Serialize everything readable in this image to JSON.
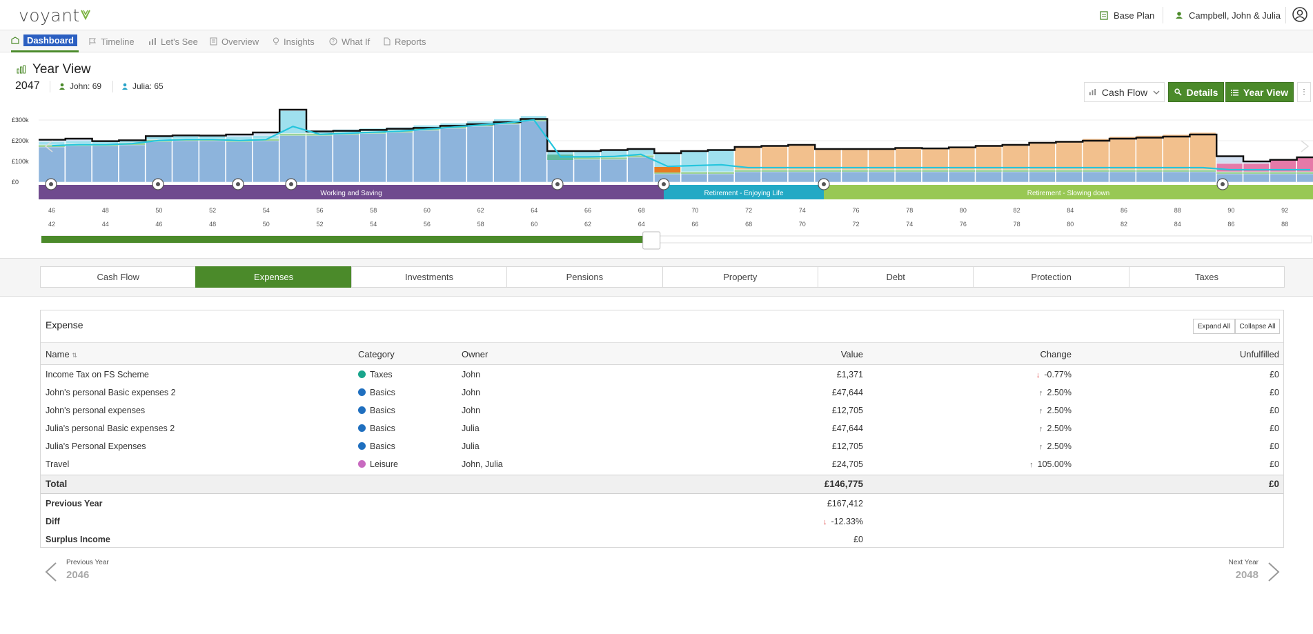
{
  "app": {
    "logo_text": "voyant"
  },
  "header": {
    "plan_label": "Base Plan",
    "client_label": "Campbell, John & Julia"
  },
  "nav": {
    "items": [
      {
        "label": "Dashboard",
        "icon": "dashboard-icon"
      },
      {
        "label": "Timeline",
        "icon": "flag-icon"
      },
      {
        "label": "Let's See",
        "icon": "bar-chart-icon"
      },
      {
        "label": "Overview",
        "icon": "document-icon"
      },
      {
        "label": "Insights",
        "icon": "lightbulb-icon"
      },
      {
        "label": "What If",
        "icon": "question-icon"
      },
      {
        "label": "Reports",
        "icon": "report-icon"
      }
    ]
  },
  "view": {
    "title": "Year View",
    "year": "2047",
    "ages": [
      {
        "label": "John: 69",
        "color": "#4b8a2a"
      },
      {
        "label": "Julia: 65",
        "color": "#29a3c8"
      }
    ],
    "buttons": {
      "cashflow": "Cash Flow",
      "details": "Details",
      "yearview": "Year View"
    }
  },
  "chart_data": {
    "type": "bar",
    "y_ticks": [
      "£300k",
      "£200k",
      "£100k",
      "£0"
    ],
    "ylim": [
      0,
      350
    ],
    "stacked_series_colors": [
      "#8db4dc",
      "#a8c4e6",
      "#9fe0ee",
      "#f2c08d",
      "#9cd29a",
      "#e57aa8",
      "#e77b22",
      "#5fb99c"
    ],
    "bars": [
      {
        "age": 46,
        "blue": 170,
        "cyan": 15,
        "total": 205
      },
      {
        "age": 47,
        "blue": 175,
        "cyan": 15,
        "total": 210
      },
      {
        "age": 48,
        "blue": 175,
        "cyan": 15,
        "total": 198
      },
      {
        "age": 49,
        "blue": 180,
        "cyan": 15,
        "total": 202
      },
      {
        "age": 50,
        "blue": 195,
        "cyan": 15,
        "total": 222
      },
      {
        "age": 51,
        "blue": 200,
        "cyan": 15,
        "total": 226
      },
      {
        "age": 52,
        "blue": 200,
        "cyan": 15,
        "total": 225
      },
      {
        "age": 53,
        "blue": 195,
        "cyan": 15,
        "total": 230
      },
      {
        "age": 54,
        "blue": 200,
        "cyan": 15,
        "total": 240
      },
      {
        "age": 55,
        "blue": 225,
        "cyan": 110,
        "total": 350
      },
      {
        "age": 56,
        "blue": 225,
        "cyan": 15,
        "total": 245
      },
      {
        "age": 57,
        "blue": 230,
        "cyan": 15,
        "total": 248
      },
      {
        "age": 58,
        "blue": 235,
        "cyan": 15,
        "total": 252
      },
      {
        "age": 59,
        "blue": 240,
        "cyan": 15,
        "total": 258
      },
      {
        "age": 60,
        "blue": 250,
        "cyan": 15,
        "total": 262
      },
      {
        "age": 61,
        "blue": 260,
        "cyan": 15,
        "total": 272
      },
      {
        "age": 62,
        "blue": 270,
        "cyan": 15,
        "total": 280
      },
      {
        "age": 63,
        "blue": 280,
        "cyan": 15,
        "total": 290
      },
      {
        "age": 64,
        "blue": 295,
        "cyan": 15,
        "total": 305
      },
      {
        "age": 65,
        "blue": 110,
        "cyan": 30,
        "total": 150
      },
      {
        "age": 66,
        "blue": 110,
        "cyan": 30,
        "total": 150
      },
      {
        "age": 67,
        "blue": 110,
        "cyan": 35,
        "total": 155
      },
      {
        "age": 68,
        "blue": 120,
        "cyan": 35,
        "total": 160
      },
      {
        "age": 69,
        "blue": 40,
        "cyan": 90,
        "total": 140
      },
      {
        "age": 70,
        "blue": 40,
        "cyan": 100,
        "total": 150
      },
      {
        "age": 71,
        "blue": 40,
        "cyan": 110,
        "total": 155
      },
      {
        "age": 72,
        "blue": 50,
        "orange": 110,
        "total": 170
      },
      {
        "age": 73,
        "blue": 50,
        "orange": 115,
        "total": 175
      },
      {
        "age": 74,
        "blue": 50,
        "orange": 120,
        "total": 180
      },
      {
        "age": 75,
        "blue": 50,
        "orange": 100,
        "total": 160
      },
      {
        "age": 76,
        "blue": 50,
        "orange": 100,
        "total": 160
      },
      {
        "age": 77,
        "blue": 50,
        "orange": 100,
        "total": 160
      },
      {
        "age": 78,
        "blue": 50,
        "orange": 105,
        "total": 165
      },
      {
        "age": 79,
        "blue": 50,
        "orange": 105,
        "total": 163
      },
      {
        "age": 80,
        "blue": 50,
        "orange": 110,
        "total": 168
      },
      {
        "age": 81,
        "blue": 50,
        "orange": 120,
        "total": 175
      },
      {
        "age": 82,
        "blue": 50,
        "orange": 125,
        "total": 180
      },
      {
        "age": 83,
        "blue": 50,
        "orange": 135,
        "total": 190
      },
      {
        "age": 84,
        "blue": 50,
        "orange": 140,
        "total": 195
      },
      {
        "age": 85,
        "blue": 50,
        "orange": 150,
        "total": 200
      },
      {
        "age": 86,
        "blue": 50,
        "orange": 160,
        "total": 210
      },
      {
        "age": 87,
        "blue": 50,
        "orange": 165,
        "total": 215
      },
      {
        "age": 88,
        "blue": 50,
        "orange": 170,
        "total": 220
      },
      {
        "age": 89,
        "blue": 50,
        "orange": 180,
        "total": 230
      },
      {
        "age": 90,
        "blue": 40,
        "pink": 40,
        "total": 125
      },
      {
        "age": 91,
        "blue": 40,
        "pink": 40,
        "total": 100
      },
      {
        "age": 92,
        "blue": 40,
        "pink": 60,
        "total": 108
      },
      {
        "age": 93,
        "blue": 40,
        "pink": 70,
        "total": 120
      }
    ],
    "phases": [
      {
        "label": "Working and Saving",
        "color": "#6f4a8e"
      },
      {
        "label": "Retirement - Enjoying Life",
        "color": "#22a9c5"
      },
      {
        "label": "Retirement - Slowing down",
        "color": "#98c854"
      }
    ],
    "ages_top": [
      "46",
      "48",
      "50",
      "52",
      "54",
      "56",
      "58",
      "60",
      "62",
      "64",
      "66",
      "68",
      "70",
      "72",
      "74",
      "76",
      "78",
      "80",
      "82",
      "84",
      "86",
      "88",
      "90",
      "92"
    ],
    "ages_bottom": [
      "42",
      "44",
      "46",
      "48",
      "50",
      "52",
      "54",
      "56",
      "58",
      "60",
      "62",
      "64",
      "66",
      "68",
      "70",
      "72",
      "74",
      "76",
      "78",
      "80",
      "82",
      "84",
      "86",
      "88"
    ],
    "slider_progress": 0.48
  },
  "tabs": [
    "Cash Flow",
    "Expenses",
    "Investments",
    "Pensions",
    "Property",
    "Debt",
    "Protection",
    "Taxes"
  ],
  "expense": {
    "title": "Expense",
    "expand_all": "Expand All",
    "collapse_all": "Collapse All",
    "columns": {
      "name": "Name",
      "category": "Category",
      "owner": "Owner",
      "value": "Value",
      "change": "Change",
      "unfulfilled": "Unfulfilled"
    },
    "rows": [
      {
        "name": "Income Tax on FS Scheme",
        "category": "Taxes",
        "cat_color": "#19a58c",
        "owner": "John",
        "value": "£1,371",
        "change": "-0.77%",
        "change_dir": "down",
        "unfulfilled": "£0"
      },
      {
        "name": "John's personal Basic expenses 2",
        "category": "Basics",
        "cat_color": "#1f6fbf",
        "owner": "John",
        "value": "£47,644",
        "change": "2.50%",
        "change_dir": "up",
        "unfulfilled": "£0"
      },
      {
        "name": "John's personal expenses",
        "category": "Basics",
        "cat_color": "#1f6fbf",
        "owner": "John",
        "value": "£12,705",
        "change": "2.50%",
        "change_dir": "up",
        "unfulfilled": "£0"
      },
      {
        "name": "Julia's personal Basic expenses 2",
        "category": "Basics",
        "cat_color": "#1f6fbf",
        "owner": "Julia",
        "value": "£47,644",
        "change": "2.50%",
        "change_dir": "up",
        "unfulfilled": "£0"
      },
      {
        "name": "Julia's Personal Expenses",
        "category": "Basics",
        "cat_color": "#1f6fbf",
        "owner": "Julia",
        "value": "£12,705",
        "change": "2.50%",
        "change_dir": "up",
        "unfulfilled": "£0"
      },
      {
        "name": "Travel",
        "category": "Leisure",
        "cat_color": "#c86ac0",
        "owner": "John, Julia",
        "value": "£24,705",
        "change": "105.00%",
        "change_dir": "up",
        "unfulfilled": "£0"
      }
    ],
    "total": {
      "label": "Total",
      "value": "£146,775",
      "unfulfilled": "£0"
    },
    "previous_year": {
      "label": "Previous Year",
      "value": "£167,412"
    },
    "diff": {
      "label": "Diff",
      "value": "-12.33%"
    },
    "surplus": {
      "label": "Surplus Income",
      "value": "£0"
    }
  },
  "pager": {
    "prev_label": "Previous Year",
    "prev_year": "2046",
    "next_label": "Next Year",
    "next_year": "2048"
  }
}
